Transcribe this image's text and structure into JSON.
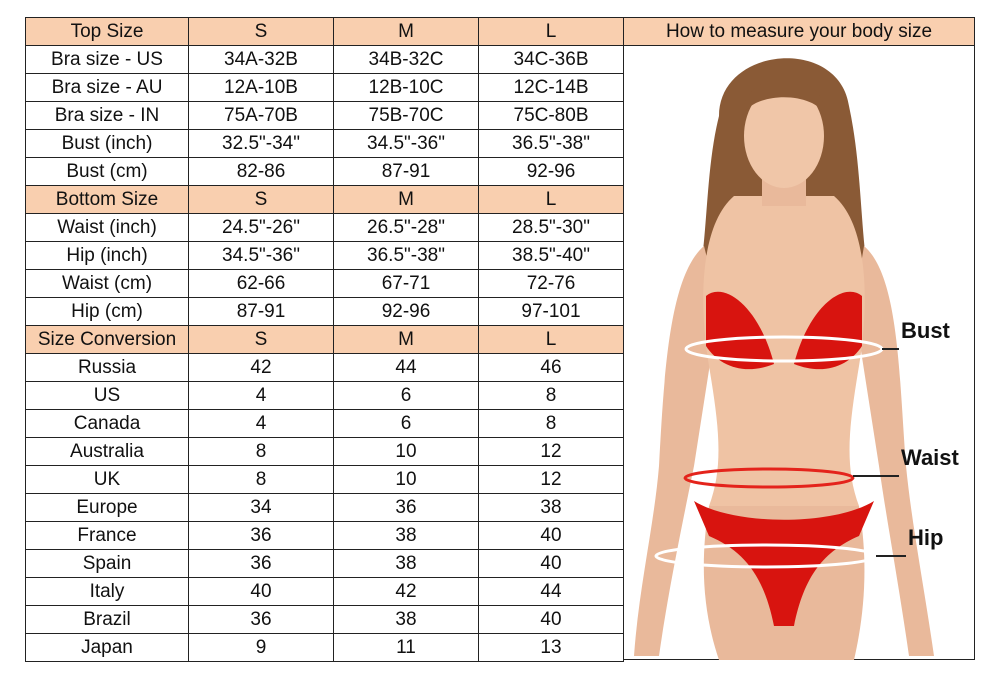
{
  "top_header": [
    "Top Size",
    "S",
    "M",
    "L"
  ],
  "top_rows": [
    [
      "Bra size - US",
      "34A-32B",
      "34B-32C",
      "34C-36B"
    ],
    [
      "Bra size - AU",
      "12A-10B",
      "12B-10C",
      "12C-14B"
    ],
    [
      "Bra size - IN",
      "75A-70B",
      "75B-70C",
      "75C-80B"
    ],
    [
      "Bust (inch)",
      "32.5\"-34\"",
      "34.5\"-36\"",
      "36.5\"-38\""
    ],
    [
      "Bust (cm)",
      "82-86",
      "87-91",
      "92-96"
    ]
  ],
  "bottom_header": [
    "Bottom Size",
    "S",
    "M",
    "L"
  ],
  "bottom_rows": [
    [
      "Waist (inch)",
      "24.5\"-26\"",
      "26.5\"-28\"",
      "28.5\"-30\""
    ],
    [
      "Hip (inch)",
      "34.5\"-36\"",
      "36.5\"-38\"",
      "38.5\"-40\""
    ],
    [
      "Waist (cm)",
      "62-66",
      "67-71",
      "72-76"
    ],
    [
      "Hip (cm)",
      "87-91",
      "92-96",
      "97-101"
    ]
  ],
  "conversion_header": [
    "Size Conversion",
    "S",
    "M",
    "L"
  ],
  "conversion_rows": [
    [
      "Russia",
      "42",
      "44",
      "46"
    ],
    [
      "US",
      "4",
      "6",
      "8"
    ],
    [
      "Canada",
      "4",
      "6",
      "8"
    ],
    [
      "Australia",
      "8",
      "10",
      "12"
    ],
    [
      "UK",
      "8",
      "10",
      "12"
    ],
    [
      "Europe",
      "34",
      "36",
      "38"
    ],
    [
      "France",
      "36",
      "38",
      "40"
    ],
    [
      "Spain",
      "36",
      "38",
      "40"
    ],
    [
      "Italy",
      "40",
      "42",
      "44"
    ],
    [
      "Brazil",
      "36",
      "38",
      "40"
    ],
    [
      "Japan",
      "9",
      "11",
      "13"
    ]
  ],
  "panel": {
    "title": "How to measure your body size",
    "labels": {
      "bust": "Bust",
      "waist": "Waist",
      "hip": "Hip"
    }
  },
  "colors": {
    "header_fill": "#f9cfaf",
    "bikini": "#d8140f",
    "measure_line": "#ffffff"
  }
}
